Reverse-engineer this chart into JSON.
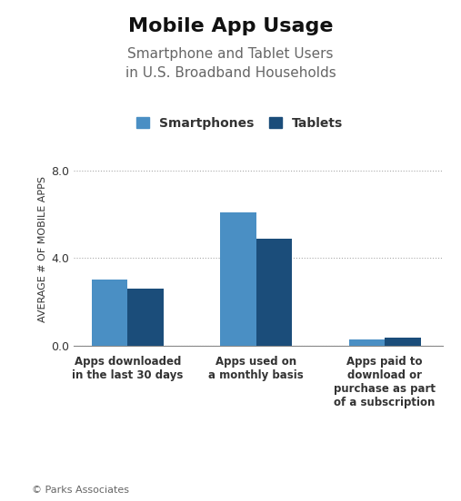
{
  "title": "Mobile App Usage",
  "subtitle": "Smartphone and Tablet Users\nin U.S. Broadband Households",
  "categories": [
    "Apps downloaded\nin the last 30 days",
    "Apps used on\na monthly basis",
    "Apps paid to\ndownload or\npurchase as part\nof a subscription"
  ],
  "smartphones": [
    3.0,
    6.1,
    0.28
  ],
  "tablets": [
    2.6,
    4.9,
    0.35
  ],
  "smartphone_color": "#4a8fc4",
  "tablet_color": "#1b4d7a",
  "ylabel": "AVERAGE # OF MOBILE APPS",
  "ylim": [
    0,
    8.8
  ],
  "yticks": [
    0.0,
    4.0,
    8.0
  ],
  "background_color": "#ffffff",
  "footer": "© Parks Associates",
  "legend_labels": [
    "Smartphones",
    "Tablets"
  ],
  "bar_width": 0.28,
  "title_fontsize": 16,
  "subtitle_fontsize": 11,
  "ylabel_fontsize": 8,
  "legend_fontsize": 10,
  "xtick_fontsize": 8.5,
  "ytick_fontsize": 9,
  "footer_fontsize": 8,
  "title_color": "#111111",
  "subtitle_color": "#666666",
  "text_color": "#333333",
  "grid_color": "#aaaaaa"
}
